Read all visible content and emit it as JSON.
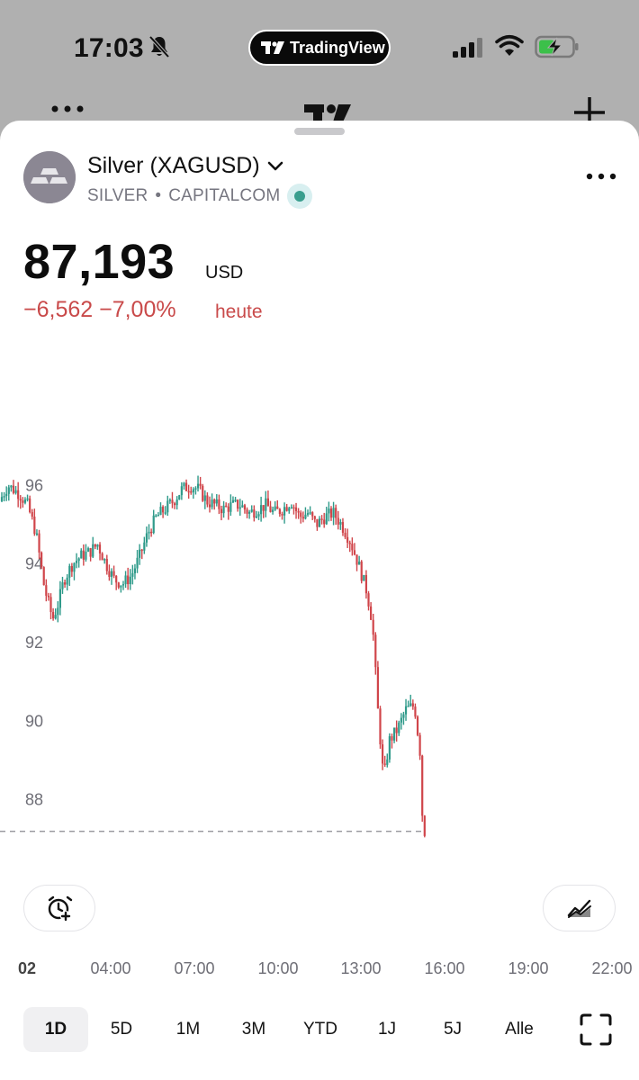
{
  "status_bar": {
    "time": "17:03",
    "app_pill": "TradingView"
  },
  "symbol": {
    "name": "Silver (XAGUSD)",
    "ticker": "SILVER",
    "exchange": "CAPITALCOM",
    "price": "87,193",
    "currency": "USD",
    "change": "−6,562 −7,00%",
    "change_label": "heute"
  },
  "colors": {
    "up": "#2f9a8a",
    "down": "#d0454a",
    "negative_text": "#c94a4a"
  },
  "chart_data": {
    "type": "candlestick",
    "y_ticks": [
      "96",
      "94",
      "92",
      "90",
      "88"
    ],
    "x_ticks": [
      "02",
      "04:00",
      "07:00",
      "10:00",
      "13:00",
      "16:00",
      "19:00",
      "22:00"
    ],
    "ylim": [
      86.5,
      97.5
    ],
    "last_price": 87.193,
    "x_range_hours": [
      2,
      22.7
    ],
    "session_end_hour": 17.1,
    "close_path": [
      [
        2.0,
        95.6
      ],
      [
        2.3,
        96.0
      ],
      [
        2.7,
        95.8
      ],
      [
        3.0,
        95.5
      ],
      [
        3.3,
        94.8
      ],
      [
        3.6,
        93.4
      ],
      [
        3.9,
        92.6
      ],
      [
        4.1,
        93.0
      ],
      [
        4.3,
        93.6
      ],
      [
        4.6,
        94.0
      ],
      [
        4.9,
        94.2
      ],
      [
        5.2,
        94.3
      ],
      [
        5.5,
        94.5
      ],
      [
        5.8,
        94.0
      ],
      [
        6.1,
        93.6
      ],
      [
        6.4,
        93.5
      ],
      [
        6.7,
        93.7
      ],
      [
        7.0,
        94.2
      ],
      [
        7.3,
        94.8
      ],
      [
        7.6,
        95.2
      ],
      [
        7.9,
        95.4
      ],
      [
        8.2,
        95.6
      ],
      [
        8.5,
        95.9
      ],
      [
        8.8,
        96.0
      ],
      [
        9.1,
        95.9
      ],
      [
        9.4,
        95.6
      ],
      [
        9.7,
        95.5
      ],
      [
        10.0,
        95.4
      ],
      [
        10.3,
        95.5
      ],
      [
        10.6,
        95.5
      ],
      [
        10.9,
        95.3
      ],
      [
        11.2,
        95.4
      ],
      [
        11.5,
        95.5
      ],
      [
        11.8,
        95.3
      ],
      [
        12.1,
        95.4
      ],
      [
        12.4,
        95.6
      ],
      [
        12.7,
        95.2
      ],
      [
        13.0,
        95.3
      ],
      [
        13.3,
        95.0
      ],
      [
        13.6,
        95.2
      ],
      [
        13.9,
        95.3
      ],
      [
        14.2,
        95.0
      ],
      [
        14.5,
        94.6
      ],
      [
        14.8,
        94.0
      ],
      [
        15.1,
        93.3
      ],
      [
        15.3,
        92.5
      ],
      [
        15.5,
        90.2
      ],
      [
        15.7,
        88.5
      ],
      [
        15.9,
        89.5
      ],
      [
        16.2,
        89.8
      ],
      [
        16.5,
        90.3
      ],
      [
        16.8,
        90.4
      ],
      [
        17.0,
        89.2
      ],
      [
        17.1,
        87.19
      ]
    ]
  },
  "alert_button": {
    "icon": "alarm-plus-icon"
  },
  "indicator_button": {
    "icon": "indicator-icon"
  },
  "time_ranges": [
    "1D",
    "5D",
    "1M",
    "3M",
    "YTD",
    "1J",
    "5J",
    "Alle"
  ],
  "active_range": "1D"
}
